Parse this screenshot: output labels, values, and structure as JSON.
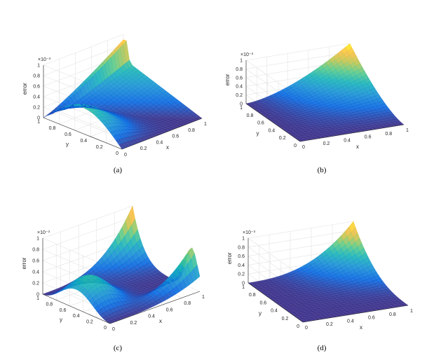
{
  "chart_data": [
    {
      "type": "surface",
      "caption": "(a)",
      "zlabel": "error",
      "xlabel": "x",
      "ylabel": "y",
      "z_exponent": "×10⁻³",
      "x_ticks": [
        "0",
        "0.2",
        "0.4",
        "0.6",
        "0.8",
        "1"
      ],
      "y_ticks": [
        "0",
        "0.2",
        "0.4",
        "0.6",
        "0.8",
        "1"
      ],
      "z_ticks": [
        "0",
        "0.2",
        "0.4",
        "0.6",
        "0.8",
        "1"
      ],
      "x_range": [
        0,
        1
      ],
      "y_range": [
        0,
        1
      ],
      "z_range": [
        0,
        0.001
      ],
      "max_error": 0.001,
      "colormap": "parula"
    },
    {
      "type": "surface",
      "caption": "(b)",
      "zlabel": "error",
      "xlabel": "x",
      "ylabel": "y",
      "z_exponent": "×10⁻³",
      "x_ticks": [
        "0",
        "0.2",
        "0.4",
        "0.6",
        "0.8",
        "1"
      ],
      "y_ticks": [
        "0",
        "0.2",
        "0.4",
        "0.6",
        "0.8",
        "1"
      ],
      "z_ticks": [
        "0",
        "0.2",
        "0.4",
        "0.6",
        "0.8",
        "1"
      ],
      "x_range": [
        0,
        1
      ],
      "y_range": [
        0,
        1
      ],
      "z_range": [
        0,
        0.001
      ],
      "max_error": 0.001,
      "colormap": "parula"
    },
    {
      "type": "surface",
      "caption": "(c)",
      "zlabel": "error",
      "xlabel": "x",
      "ylabel": "y",
      "z_exponent": "×10⁻³",
      "x_ticks": [
        "0",
        "0.2",
        "0.4",
        "0.6",
        "0.8",
        "1"
      ],
      "y_ticks": [
        "0",
        "0.2",
        "0.4",
        "0.6",
        "0.8",
        "1"
      ],
      "z_ticks": [
        "0",
        "0.2",
        "0.4",
        "0.6",
        "0.8",
        "1"
      ],
      "x_range": [
        0,
        1
      ],
      "y_range": [
        0,
        1
      ],
      "z_range": [
        0,
        0.001
      ],
      "max_error": 0.001,
      "colormap": "parula"
    },
    {
      "type": "surface",
      "caption": "(d)",
      "zlabel": "error",
      "xlabel": "x",
      "ylabel": "y",
      "z_exponent": "×10⁻³",
      "x_ticks": [
        "0",
        "0.2",
        "0.4",
        "0.6",
        "0.8",
        "1"
      ],
      "y_ticks": [
        "0",
        "0.2",
        "0.4",
        "0.6",
        "0.8",
        "1"
      ],
      "z_ticks": [
        "0",
        "0.2",
        "0.4",
        "0.6",
        "0.8",
        "1"
      ],
      "x_range": [
        0,
        1
      ],
      "y_range": [
        0,
        1
      ],
      "z_range": [
        0,
        0.001
      ],
      "max_error": 0.001,
      "colormap": "parula"
    }
  ]
}
